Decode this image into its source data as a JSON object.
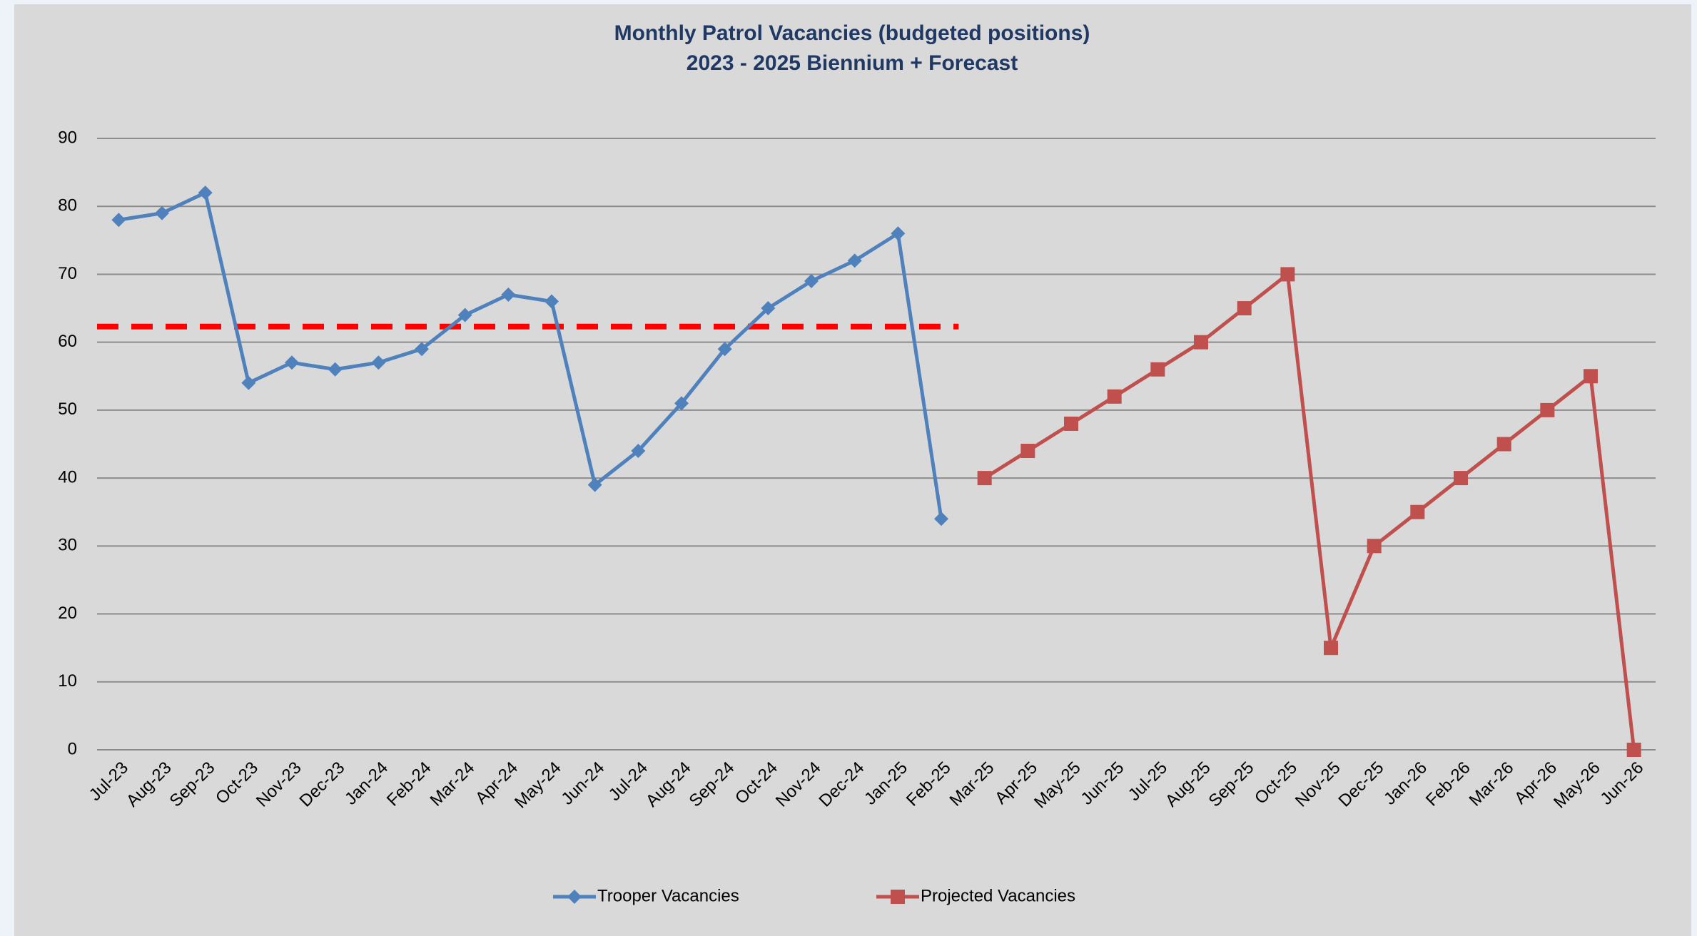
{
  "chart_data": {
    "type": "line",
    "title": "Monthly Patrol Vacancies (budgeted positions)",
    "subtitle": "2023 - 2025 Biennium + Forecast",
    "categories": [
      "Jul-23",
      "Aug-23",
      "Sep-23",
      "Oct-23",
      "Nov-23",
      "Dec-23",
      "Jan-24",
      "Feb-24",
      "Mar-24",
      "Apr-24",
      "May-24",
      "Jun-24",
      "Jul-24",
      "Aug-24",
      "Sep-24",
      "Oct-24",
      "Nov-24",
      "Dec-24",
      "Jan-25",
      "Feb-25",
      "Mar-25",
      "Apr-25",
      "May-25",
      "Jun-25",
      "Jul-25",
      "Aug-25",
      "Sep-25",
      "Oct-25",
      "Nov-25",
      "Dec-25",
      "Jan-26",
      "Feb-26",
      "Mar-26",
      "Apr-26",
      "May-26",
      "Jun-26"
    ],
    "series": [
      {
        "name": "Trooper Vacancies",
        "color": "#4f81bd",
        "marker": "diamond",
        "values": [
          78,
          79,
          82,
          54,
          57,
          56,
          57,
          59,
          64,
          67,
          66,
          39,
          44,
          51,
          59,
          65,
          69,
          72,
          76,
          34,
          null,
          null,
          null,
          null,
          null,
          null,
          null,
          null,
          null,
          null,
          null,
          null,
          null,
          null,
          null,
          null
        ]
      },
      {
        "name": "Projected Vacancies",
        "color": "#c0504d",
        "marker": "square",
        "values": [
          null,
          null,
          null,
          null,
          null,
          null,
          null,
          null,
          null,
          null,
          null,
          null,
          null,
          null,
          null,
          null,
          null,
          null,
          null,
          null,
          40,
          44,
          48,
          52,
          56,
          60,
          65,
          70,
          15,
          30,
          35,
          40,
          45,
          50,
          55,
          0
        ]
      }
    ],
    "reference_line": {
      "value": 62.3,
      "color": "#ff0000",
      "dashed": true
    },
    "ylim": [
      0,
      90
    ],
    "yticks": [
      0,
      10,
      20,
      30,
      40,
      50,
      60,
      70,
      80,
      90
    ],
    "grid": true,
    "legend": "bottom"
  }
}
